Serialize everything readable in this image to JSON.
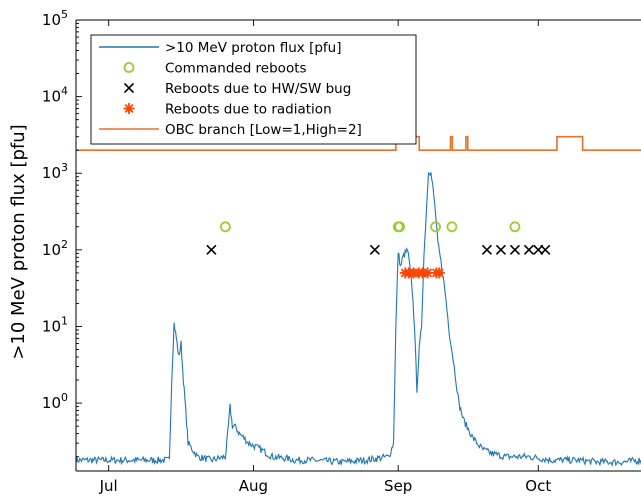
{
  "chart_data": {
    "type": "line",
    "ylabel": ">10 MeV proton flux [pfu]",
    "xlabel": "",
    "yscale": "log",
    "ylim": [
      0.13,
      100000
    ],
    "xlim": [
      -7,
      114
    ],
    "y_ticks": [
      {
        "value": 1,
        "base": "10",
        "exp": "0"
      },
      {
        "value": 10,
        "base": "10",
        "exp": "1"
      },
      {
        "value": 100,
        "base": "10",
        "exp": "2"
      },
      {
        "value": 1000,
        "base": "10",
        "exp": "3"
      },
      {
        "value": 10000,
        "base": "10",
        "exp": "4"
      },
      {
        "value": 100000,
        "base": "10",
        "exp": "5"
      }
    ],
    "x_ticks": [
      {
        "value": 0,
        "label": "Jul"
      },
      {
        "value": 31,
        "label": "Aug"
      },
      {
        "value": 62,
        "label": "Sep"
      },
      {
        "value": 92,
        "label": "Oct"
      }
    ],
    "legend": {
      "placement": "top-left",
      "entries": [
        {
          "label": ">10 MeV proton flux [pfu]",
          "marker": "line",
          "color": "#1f77b4"
        },
        {
          "label": "Commanded reboots",
          "marker": "circle",
          "color": "#9acd32"
        },
        {
          "label": "Reboots due to HW/SW bug",
          "marker": "x",
          "color": "#000000"
        },
        {
          "label": "Reboots due to radiation",
          "marker": "asterisk",
          "color": "#ff4500"
        },
        {
          "label": "OBC branch [Low=1,High=2]",
          "marker": "line",
          "color": "#e8702a"
        }
      ]
    },
    "series": [
      {
        "name": ">10 MeV proton flux [pfu]",
        "color": "#1f77b4",
        "x": [
          -7,
          13,
          13.5,
          14,
          14.5,
          15,
          15.5,
          16,
          16.5,
          17,
          19,
          22,
          25,
          25.5,
          26,
          26.5,
          27,
          27.5,
          28,
          29,
          30,
          31,
          33,
          35,
          38,
          40,
          43,
          50,
          55,
          60,
          61,
          61.5,
          62,
          62.5,
          63,
          63.5,
          64,
          64.5,
          65,
          65.5,
          66,
          66.5,
          67,
          67.5,
          68,
          68.5,
          69,
          69.5,
          70,
          70.5,
          71,
          71.5,
          72,
          73,
          74,
          75,
          76,
          78,
          80,
          82,
          85,
          90,
          95,
          100,
          105,
          110,
          114
        ],
        "y": [
          0.18,
          0.18,
          2,
          11,
          7,
          4,
          6,
          2,
          0.8,
          0.3,
          0.2,
          0.18,
          0.2,
          0.4,
          0.9,
          0.5,
          0.5,
          0.45,
          0.4,
          0.35,
          0.3,
          0.28,
          0.24,
          0.2,
          0.19,
          0.18,
          0.18,
          0.17,
          0.18,
          0.2,
          0.3,
          10,
          95,
          60,
          80,
          90,
          100,
          60,
          30,
          10,
          1.5,
          5,
          10,
          80,
          300,
          1100,
          1000,
          600,
          300,
          120,
          80,
          50,
          30,
          8,
          3,
          1,
          0.6,
          0.35,
          0.25,
          0.22,
          0.2,
          0.2,
          0.18,
          0.18,
          0.17,
          0.17,
          0.18
        ]
      },
      {
        "name": "OBC branch [Low=1,High=2]",
        "color": "#e8702a",
        "steps": [
          {
            "from": -7,
            "to": 61.5,
            "level": 1
          },
          {
            "from": 61.5,
            "to": 66.5,
            "level": 2
          },
          {
            "from": 66.5,
            "to": 73.2,
            "level": 1
          },
          {
            "from": 73.2,
            "to": 73.6,
            "level": 2
          },
          {
            "from": 73.6,
            "to": 76.5,
            "level": 1
          },
          {
            "from": 76.5,
            "to": 76.9,
            "level": 2
          },
          {
            "from": 76.9,
            "to": 96,
            "level": 1
          },
          {
            "from": 96,
            "to": 101.5,
            "level": 2
          },
          {
            "from": 101.5,
            "to": 114,
            "level": 1
          }
        ],
        "level_values": {
          "1": 2000,
          "2": 3000
        }
      }
    ],
    "markers": {
      "commanded_reboots": {
        "x": [
          25,
          62,
          62.3,
          70,
          73.5,
          87
        ],
        "y": 200
      },
      "reboots_hw_sw_bug": {
        "x": [
          22,
          57,
          81,
          84,
          87,
          90,
          92,
          93.5
        ],
        "y": 100
      },
      "reboots_radiation": {
        "x": [
          63.5,
          64.3,
          65.3,
          66.4,
          67.2,
          68.3,
          70.2,
          70.8
        ],
        "y": 50
      }
    },
    "grid": false
  }
}
